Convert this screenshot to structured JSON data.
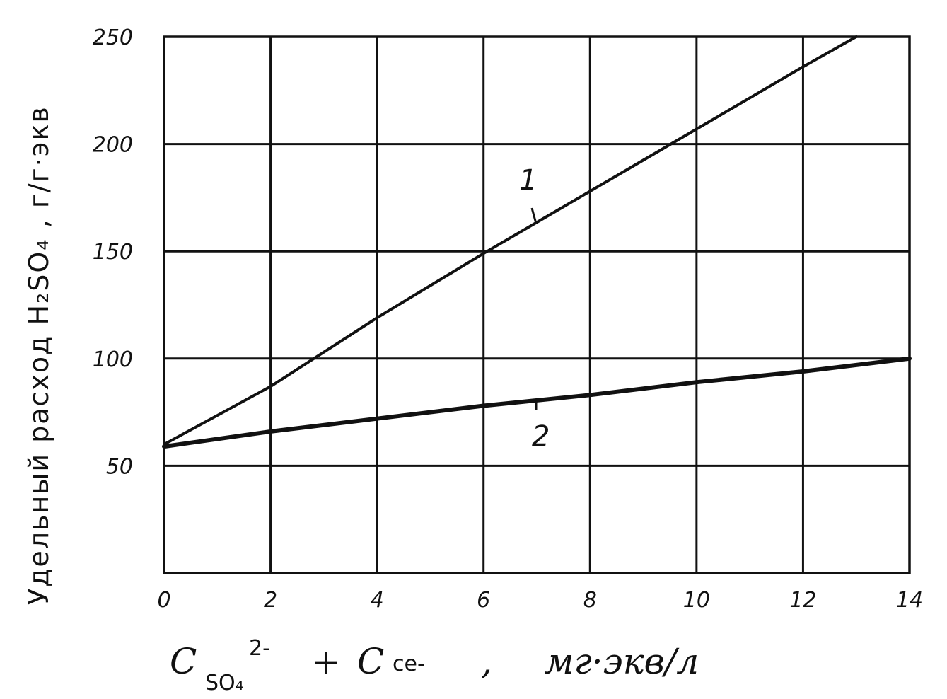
{
  "chart_data": {
    "type": "line",
    "title": "",
    "ylabel": "Удельный расход H₂SO₄ , г/г·экв",
    "xlabel": {
      "c1": "C",
      "sub1": "SO₄",
      "sup1": "2-",
      "plus": "+",
      "c2": "C",
      "sub2": "ce-",
      "sep": ",",
      "units": "мг·экв/л"
    },
    "xlim": [
      0,
      14
    ],
    "ylim": [
      0,
      250
    ],
    "x_ticks": [
      "0",
      "2",
      "4",
      "6",
      "8",
      "10",
      "12",
      "14"
    ],
    "y_ticks": [
      "50",
      "100",
      "150",
      "200",
      "250"
    ],
    "grid": true,
    "series": [
      {
        "name": "1",
        "x": [
          0,
          2,
          4,
          6,
          8,
          10,
          12,
          13
        ],
        "y": [
          60,
          87,
          119,
          149,
          178,
          207,
          236,
          250
        ]
      },
      {
        "name": "2",
        "x": [
          0,
          2,
          4,
          6,
          8,
          10,
          12,
          14
        ],
        "y": [
          59,
          66,
          72,
          78,
          83,
          89,
          94,
          100
        ]
      }
    ]
  }
}
